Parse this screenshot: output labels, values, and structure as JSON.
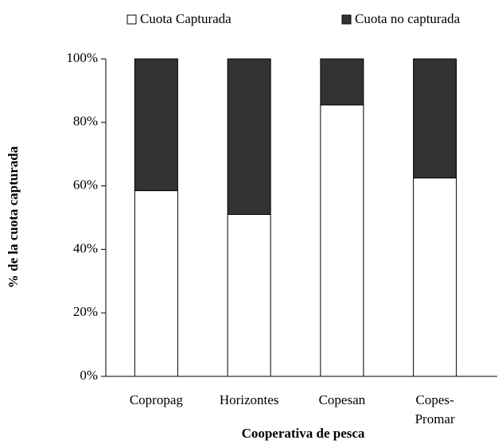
{
  "chart_data": {
    "type": "stacked_bar",
    "categories": [
      "Copropag",
      "Horizontes",
      "Copesan",
      "Copes-\nPromar"
    ],
    "series": [
      {
        "name": "Cuota Capturada",
        "color": "#ffffff",
        "values": [
          58.5,
          51,
          85.5,
          62.5
        ]
      },
      {
        "name": "Cuota no capturada",
        "color": "#333333",
        "values": [
          41.5,
          49,
          14.5,
          37.5
        ]
      }
    ],
    "ylim": [
      0,
      100
    ],
    "yticks": [
      {
        "value": 0,
        "label": "0%"
      },
      {
        "value": 20,
        "label": "20%"
      },
      {
        "value": 40,
        "label": "40%"
      },
      {
        "value": 60,
        "label": "60%"
      },
      {
        "value": 80,
        "label": "80%"
      },
      {
        "value": 100,
        "label": "100%"
      }
    ],
    "y_label": "% de la cuota capturada",
    "x_label": "Cooperativa de pesca",
    "legend": "top",
    "grid": false
  }
}
